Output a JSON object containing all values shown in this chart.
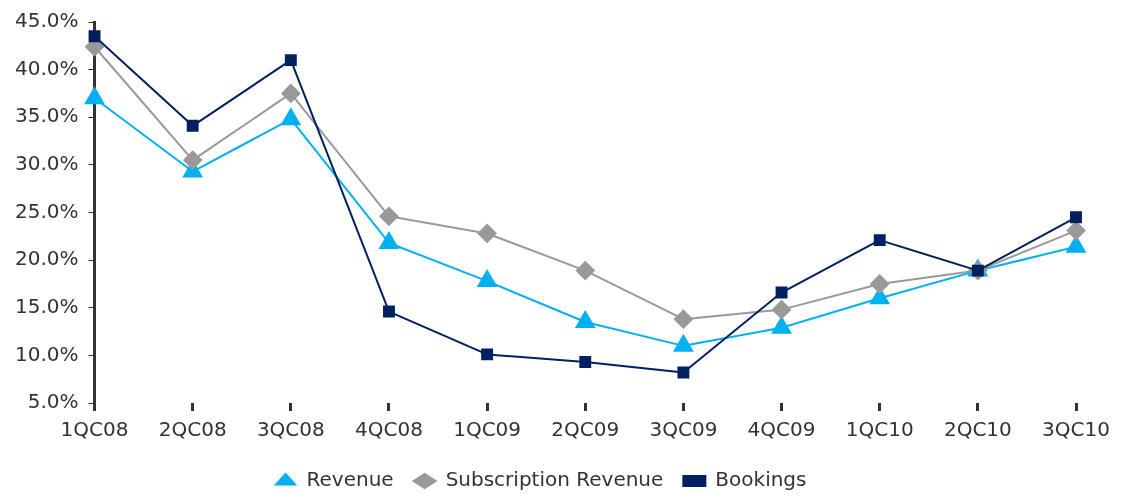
{
  "chart_data": {
    "type": "line",
    "categories": [
      "1QC08",
      "2QC08",
      "3QC08",
      "4QC08",
      "1QC09",
      "2QC09",
      "3QC09",
      "4QC09",
      "1QC10",
      "2QC10",
      "3QC10"
    ],
    "series": [
      {
        "name": "Revenue",
        "color": "#00b0f0",
        "marker": "triangle",
        "values": [
          37.0,
          29.3,
          34.8,
          21.8,
          17.8,
          13.5,
          11.0,
          12.9,
          16.0,
          18.9,
          21.4
        ]
      },
      {
        "name": "Subscription Revenue",
        "color": "#999999",
        "marker": "diamond",
        "values": [
          42.4,
          30.5,
          37.5,
          24.6,
          22.8,
          18.9,
          13.8,
          14.8,
          17.5,
          18.9,
          23.1
        ]
      },
      {
        "name": "Bookings",
        "color": "#002060",
        "marker": "square",
        "values": [
          43.5,
          34.1,
          41.0,
          14.6,
          10.1,
          9.3,
          8.2,
          16.6,
          22.1,
          18.9,
          24.5
        ]
      }
    ],
    "ylim": [
      5,
      45
    ],
    "yticks": [
      {
        "value": 5,
        "label": "5.0%"
      },
      {
        "value": 10,
        "label": "10.0%"
      },
      {
        "value": 15,
        "label": "15.0%"
      },
      {
        "value": 20,
        "label": "20.0%"
      },
      {
        "value": 25,
        "label": "25.0%"
      },
      {
        "value": 30,
        "label": "30.0%"
      },
      {
        "value": 35,
        "label": "35.0%"
      },
      {
        "value": 40,
        "label": "40.0%"
      },
      {
        "value": 45,
        "label": "45.0%"
      }
    ],
    "grid": false,
    "legend": "bottom",
    "line_style": "solid"
  }
}
